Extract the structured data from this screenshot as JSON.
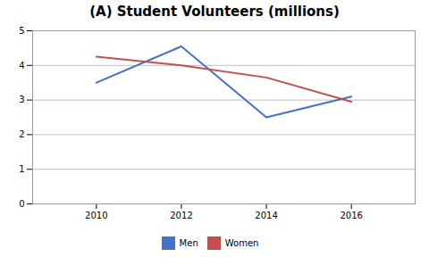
{
  "chart_data": {
    "type": "line",
    "title": "(A) Student Volunteers (millions)",
    "x": [
      2010,
      2012,
      2014,
      2016
    ],
    "series": [
      {
        "name": "Men",
        "color": "#4472C4",
        "values": [
          3.5,
          4.55,
          2.5,
          3.1
        ]
      },
      {
        "name": "Women",
        "color": "#C0504D",
        "values": [
          4.25,
          4.0,
          3.65,
          2.95
        ]
      }
    ],
    "xlim": [
      2008.5,
      2017.5
    ],
    "xticks": [
      2010,
      2012,
      2014,
      2016
    ],
    "ylim": [
      0,
      5
    ],
    "yticks": [
      0,
      1,
      2,
      3,
      4,
      5
    ],
    "grid": true,
    "legend": "bottom"
  }
}
